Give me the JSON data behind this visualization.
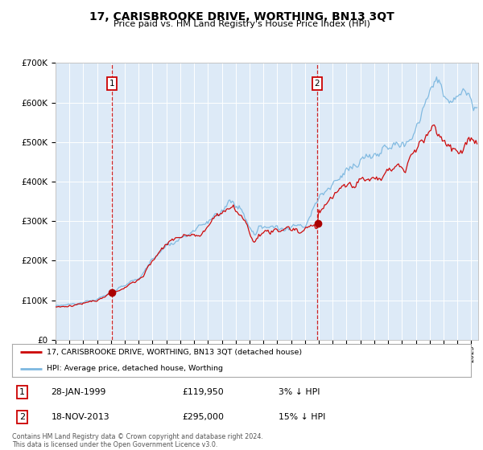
{
  "title": "17, CARISBROOKE DRIVE, WORTHING, BN13 3QT",
  "subtitle": "Price paid vs. HM Land Registry's House Price Index (HPI)",
  "bg_color": "#ddeaf7",
  "legend_label_red": "17, CARISBROOKE DRIVE, WORTHING, BN13 3QT (detached house)",
  "legend_label_blue": "HPI: Average price, detached house, Worthing",
  "sale1_date": "28-JAN-1999",
  "sale1_price": "£119,950",
  "sale1_hpi": "3% ↓ HPI",
  "sale1_year": 1999.08,
  "sale1_value": 119950,
  "sale2_date": "18-NOV-2013",
  "sale2_price": "£295,000",
  "sale2_hpi": "15% ↓ HPI",
  "sale2_year": 2013.88,
  "sale2_value": 295000,
  "footer": "Contains HM Land Registry data © Crown copyright and database right 2024.\nThis data is licensed under the Open Government Licence v3.0.",
  "xmin": 1995.0,
  "xmax": 2025.5,
  "ymin": 0,
  "ymax": 700000
}
